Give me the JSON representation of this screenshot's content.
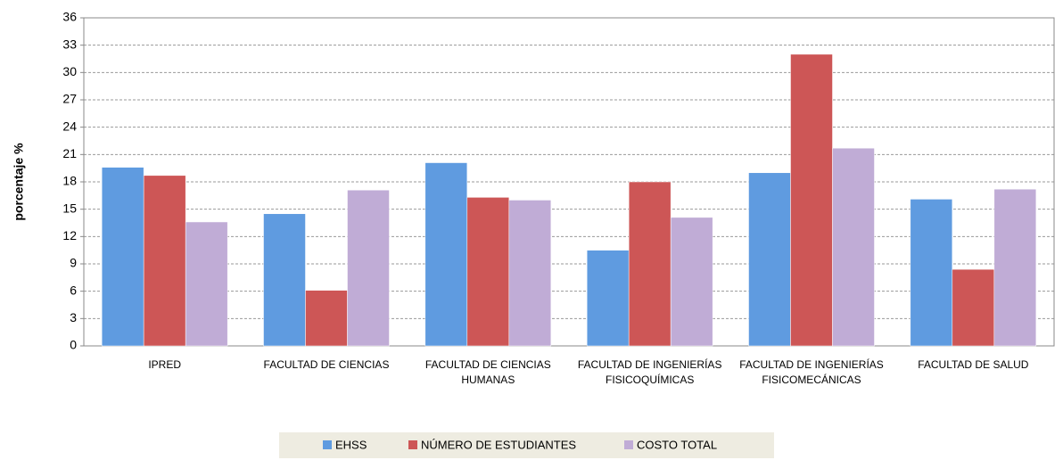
{
  "chart_data": {
    "type": "bar",
    "y_label": "porcentaje %",
    "categories": [
      "IPRED",
      "FACULTAD DE CIENCIAS",
      "FACULTAD DE CIENCIAS HUMANAS",
      "FACULTAD DE INGENIERÍAS FISICOQUÍMICAS",
      "FACULTAD DE INGENIERÍAS FISICOMECÁNICAS",
      "FACULTAD DE SALUD"
    ],
    "series": [
      {
        "name": "EHSS",
        "color": "#5f9be0",
        "values": [
          19.6,
          14.5,
          20.1,
          10.5,
          19.0,
          16.1
        ]
      },
      {
        "name": "NÚMERO DE ESTUDIANTES",
        "color": "#cd5656",
        "values": [
          18.7,
          6.1,
          16.3,
          18.0,
          32.0,
          8.4
        ]
      },
      {
        "name": "COSTO TOTAL",
        "color": "#c0acd6",
        "values": [
          13.6,
          17.1,
          16.0,
          14.1,
          21.7,
          17.2
        ]
      }
    ],
    "ylim": [
      0,
      36
    ],
    "yticks": [
      0,
      3,
      6,
      9,
      12,
      15,
      18,
      21,
      24,
      27,
      30,
      33,
      36
    ],
    "grid": true,
    "legend": "bottom"
  }
}
